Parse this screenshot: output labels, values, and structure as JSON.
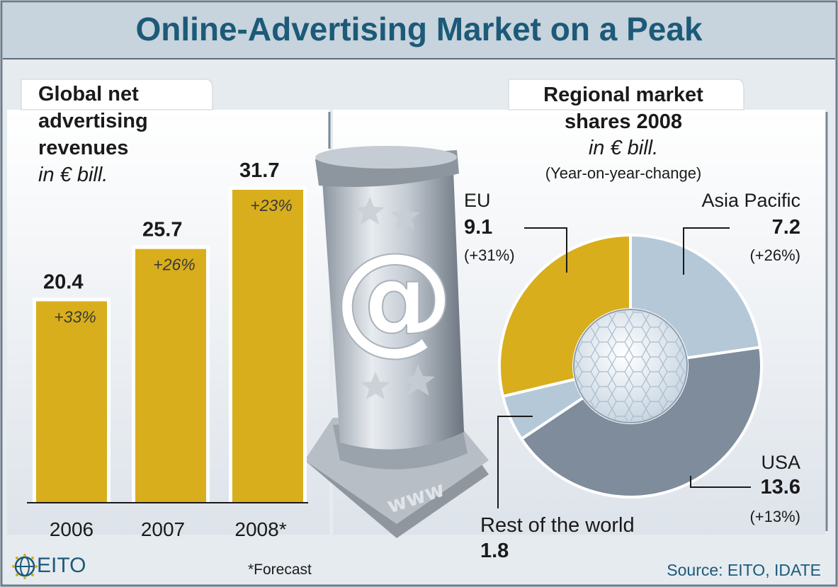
{
  "title": "Online-Advertising Market on a Peak",
  "footnote": "*Forecast",
  "logo_text": "EITO",
  "source": "Source: EITO, IDATE",
  "pillar_text": "www",
  "pillar_symbol": "@",
  "colors": {
    "accent_gold": "#d8ae1c",
    "title_blue": "#1c5a78",
    "light_blue": "#b4c8d8",
    "slate": "#7e8c9c",
    "background": "#e6ebf0"
  },
  "chart_data": [
    {
      "type": "bar",
      "title_lines": [
        "Global net",
        "advertising",
        "revenues"
      ],
      "unit": "in € bill.",
      "categories": [
        "2006",
        "2007",
        "2008*"
      ],
      "values": [
        20.4,
        25.7,
        31.7
      ],
      "value_labels": [
        "20.4",
        "25.7",
        "31.7"
      ],
      "change_labels": [
        "+33%",
        "+26%",
        "+23%"
      ],
      "ylim": [
        0,
        31.7
      ],
      "color": "#d8ae1c"
    },
    {
      "type": "pie",
      "title_lines": [
        "Regional market",
        "shares 2008"
      ],
      "unit": "in € bill.",
      "subtitle": "(Year-on-year-change)",
      "slices": [
        {
          "label": "EU",
          "value": 9.1,
          "value_label": "9.1",
          "change": "(+31%)",
          "color": "#d8ae1c"
        },
        {
          "label": "Asia Pacific",
          "value": 7.2,
          "value_label": "7.2",
          "change": "(+26%)",
          "color": "#b4c8d8"
        },
        {
          "label": "USA",
          "value": 13.6,
          "value_label": "13.6",
          "change": "(+13%)",
          "color": "#7e8c9c"
        },
        {
          "label": "Rest of the world",
          "value": 1.8,
          "value_label": "1.8",
          "change": "",
          "color": "#b4c8d8"
        }
      ]
    }
  ]
}
